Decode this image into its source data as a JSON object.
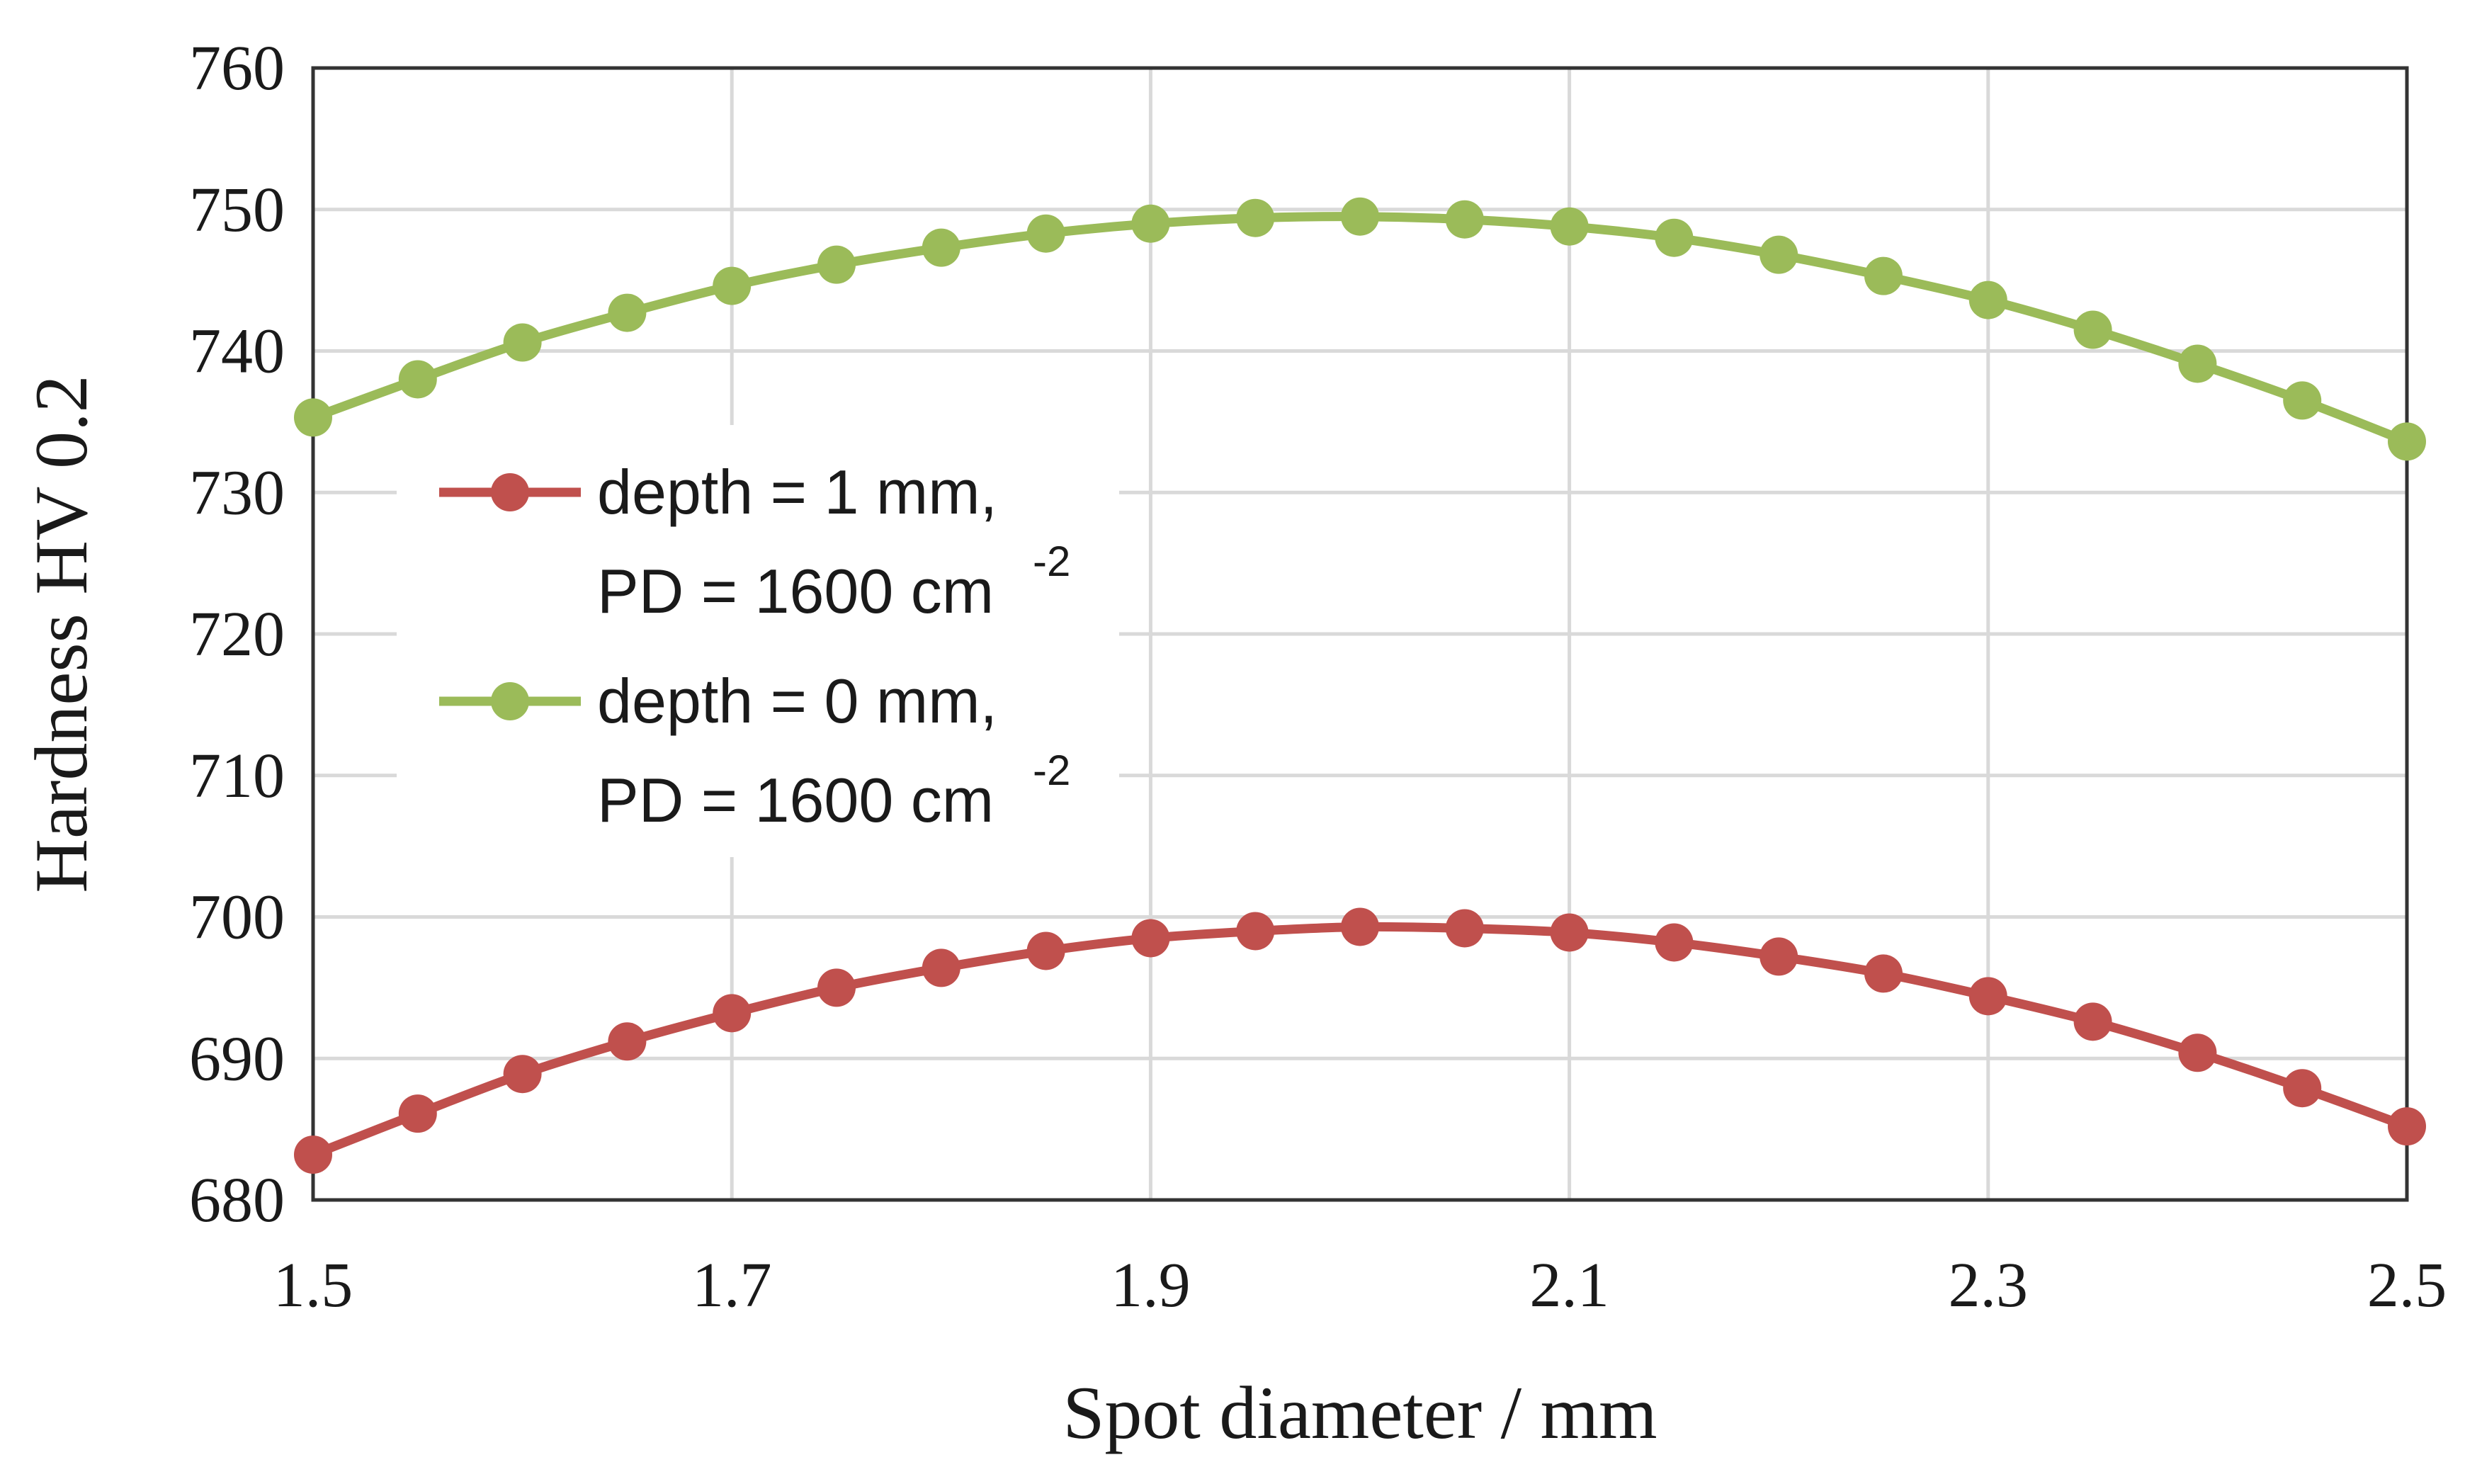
{
  "chart_data": {
    "type": "line",
    "xlabel": "Spot diameter  / mm",
    "ylabel": "Hardness  HV 0.2",
    "xlim": [
      1.5,
      2.5
    ],
    "ylim": [
      680,
      760
    ],
    "x_ticks": [
      "1.5",
      "1.7",
      "1.9",
      "2.1",
      "2.3",
      "2.5"
    ],
    "y_ticks": [
      "680",
      "690",
      "700",
      "710",
      "720",
      "730",
      "740",
      "750",
      "760"
    ],
    "grid": true,
    "legend_position": "left",
    "x": [
      1.5,
      1.55,
      1.6,
      1.65,
      1.7,
      1.75,
      1.8,
      1.85,
      1.9,
      1.95,
      2.0,
      2.05,
      2.1,
      2.15,
      2.2,
      2.25,
      2.3,
      2.35,
      2.4,
      2.45,
      2.5
    ],
    "series": [
      {
        "name": "depth = 1 mm, PD = 1600 cm -2",
        "legend_line1": "depth = 1 mm,",
        "legend_line2": "PD = 1600 cm",
        "legend_sup": "-2",
        "color": "#c0504d",
        "values": [
          683.2,
          686.1,
          688.9,
          691.2,
          693.2,
          695.0,
          696.4,
          697.6,
          698.5,
          699.0,
          699.3,
          699.2,
          698.9,
          698.2,
          697.2,
          696.0,
          694.4,
          692.6,
          690.4,
          687.9,
          685.2
        ]
      },
      {
        "name": "depth = 0 mm, PD = 1600 cm -2",
        "legend_line1": "depth = 0 mm,",
        "legend_line2": "PD = 1600 cm",
        "legend_sup": "-2",
        "color": "#9bbb59",
        "values": [
          735.3,
          738.0,
          740.6,
          742.7,
          744.6,
          746.1,
          747.3,
          748.3,
          749.0,
          749.4,
          749.5,
          749.3,
          748.8,
          748.0,
          746.8,
          745.3,
          743.6,
          741.5,
          739.1,
          736.5,
          733.6
        ]
      }
    ]
  }
}
